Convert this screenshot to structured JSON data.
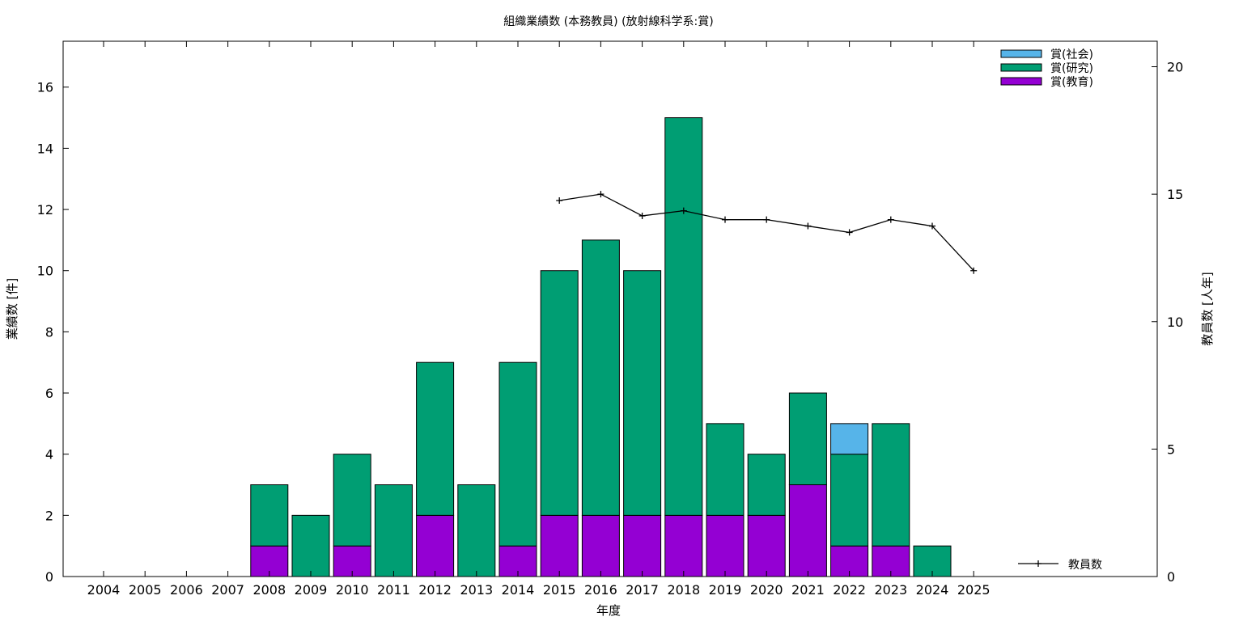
{
  "chart_data": {
    "type": "bar",
    "title": "組織業績数 (本務教員) (放射線科学系:賞)",
    "xlabel": "年度",
    "ylabel": "業績数 [件]",
    "y2label": "教員数 [人年]",
    "ylim": [
      0,
      17.5
    ],
    "y2lim": [
      0,
      21
    ],
    "yticks": [
      0,
      2,
      4,
      6,
      8,
      10,
      12,
      14,
      16
    ],
    "y2ticks": [
      0,
      5,
      10,
      15,
      20
    ],
    "categories": [
      "2004",
      "2005",
      "2006",
      "2007",
      "2008",
      "2009",
      "2010",
      "2011",
      "2012",
      "2013",
      "2014",
      "2015",
      "2016",
      "2017",
      "2018",
      "2019",
      "2020",
      "2021",
      "2022",
      "2023",
      "2024",
      "2025"
    ],
    "stacked": true,
    "series": [
      {
        "name": "賞(教育)",
        "color": "#9400d3",
        "values": [
          0,
          0,
          0,
          0,
          1,
          0,
          1,
          0,
          2,
          0,
          1,
          2,
          2,
          2,
          2,
          2,
          2,
          3,
          1,
          1,
          0,
          0
        ]
      },
      {
        "name": "賞(研究)",
        "color": "#009e73",
        "values": [
          0,
          0,
          0,
          0,
          2,
          2,
          3,
          3,
          5,
          3,
          6,
          8,
          9,
          8,
          13,
          3,
          2,
          3,
          3,
          4,
          1,
          0
        ]
      },
      {
        "name": "賞(社会)",
        "color": "#56b4e9",
        "values": [
          0,
          0,
          0,
          0,
          0,
          0,
          0,
          0,
          0,
          0,
          0,
          0,
          0,
          0,
          0,
          0,
          0,
          0,
          1,
          0,
          0,
          0
        ]
      }
    ],
    "line_series": {
      "name": "教員数",
      "axis": "y2",
      "x": [
        "2015",
        "2016",
        "2017",
        "2018",
        "2019",
        "2020",
        "2021",
        "2022",
        "2023",
        "2024",
        "2025"
      ],
      "values": [
        14.75,
        15.0,
        14.15,
        14.35,
        14.0,
        14.0,
        13.75,
        13.5,
        14.0,
        13.75,
        12.0
      ]
    },
    "legend_order": [
      "賞(社会)",
      "賞(研究)",
      "賞(教育)"
    ],
    "legend_position": "top-right",
    "line_legend_position": "bottom-right",
    "grid": false
  }
}
